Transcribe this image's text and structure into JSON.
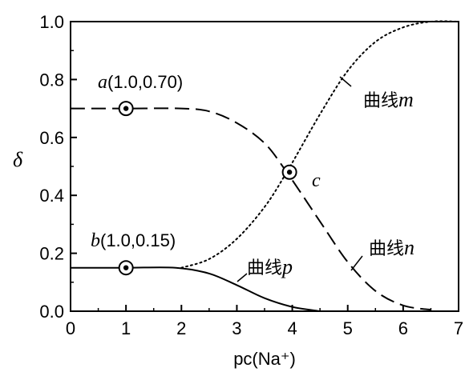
{
  "chart_data": {
    "type": "line",
    "xlabel": "pc(Na⁺)",
    "ylabel": "δ",
    "xlim": [
      0,
      7
    ],
    "ylim": [
      0,
      1.0
    ],
    "xticks": [
      "0",
      "1",
      "2",
      "3",
      "4",
      "5",
      "6",
      "7"
    ],
    "yticks": [
      "0.0",
      "0.2",
      "0.4",
      "0.6",
      "0.8",
      "1.0"
    ],
    "grid": false,
    "series": [
      {
        "name": "曲线m",
        "style": "dotted",
        "x": [
          2.0,
          2.5,
          3.0,
          3.5,
          3.9,
          4.5,
          5.0,
          5.5,
          6.0,
          6.5,
          7.0
        ],
        "y": [
          0.15,
          0.18,
          0.25,
          0.36,
          0.48,
          0.68,
          0.83,
          0.93,
          0.98,
          1.0,
          1.0
        ]
      },
      {
        "name": "曲线n",
        "style": "dashed",
        "x": [
          0,
          1.0,
          2.0,
          2.5,
          3.0,
          3.5,
          3.9,
          4.5,
          5.0,
          5.5,
          6.0,
          6.5
        ],
        "y": [
          0.7,
          0.7,
          0.7,
          0.69,
          0.65,
          0.58,
          0.48,
          0.31,
          0.17,
          0.07,
          0.02,
          0.005
        ]
      },
      {
        "name": "曲线p",
        "style": "solid",
        "x": [
          0,
          1.0,
          1.9,
          2.5,
          3.0,
          3.5,
          4.0,
          4.5
        ],
        "y": [
          0.15,
          0.15,
          0.15,
          0.13,
          0.09,
          0.045,
          0.015,
          0.0
        ]
      }
    ],
    "points": [
      {
        "label": "a",
        "coord_text": "(1.0,0.70)",
        "x": 1.0,
        "y": 0.7
      },
      {
        "label": "b",
        "coord_text": "(1.0,0.15)",
        "x": 1.0,
        "y": 0.15
      },
      {
        "label": "c",
        "coord_text": "",
        "x": 3.95,
        "y": 0.48
      }
    ],
    "curve_labels": [
      {
        "series": "曲线m",
        "text_prefix": "曲线",
        "letter": "m"
      },
      {
        "series": "曲线n",
        "text_prefix": "曲线",
        "letter": "n"
      },
      {
        "series": "曲线p",
        "text_prefix": "曲线",
        "letter": "p"
      }
    ]
  }
}
